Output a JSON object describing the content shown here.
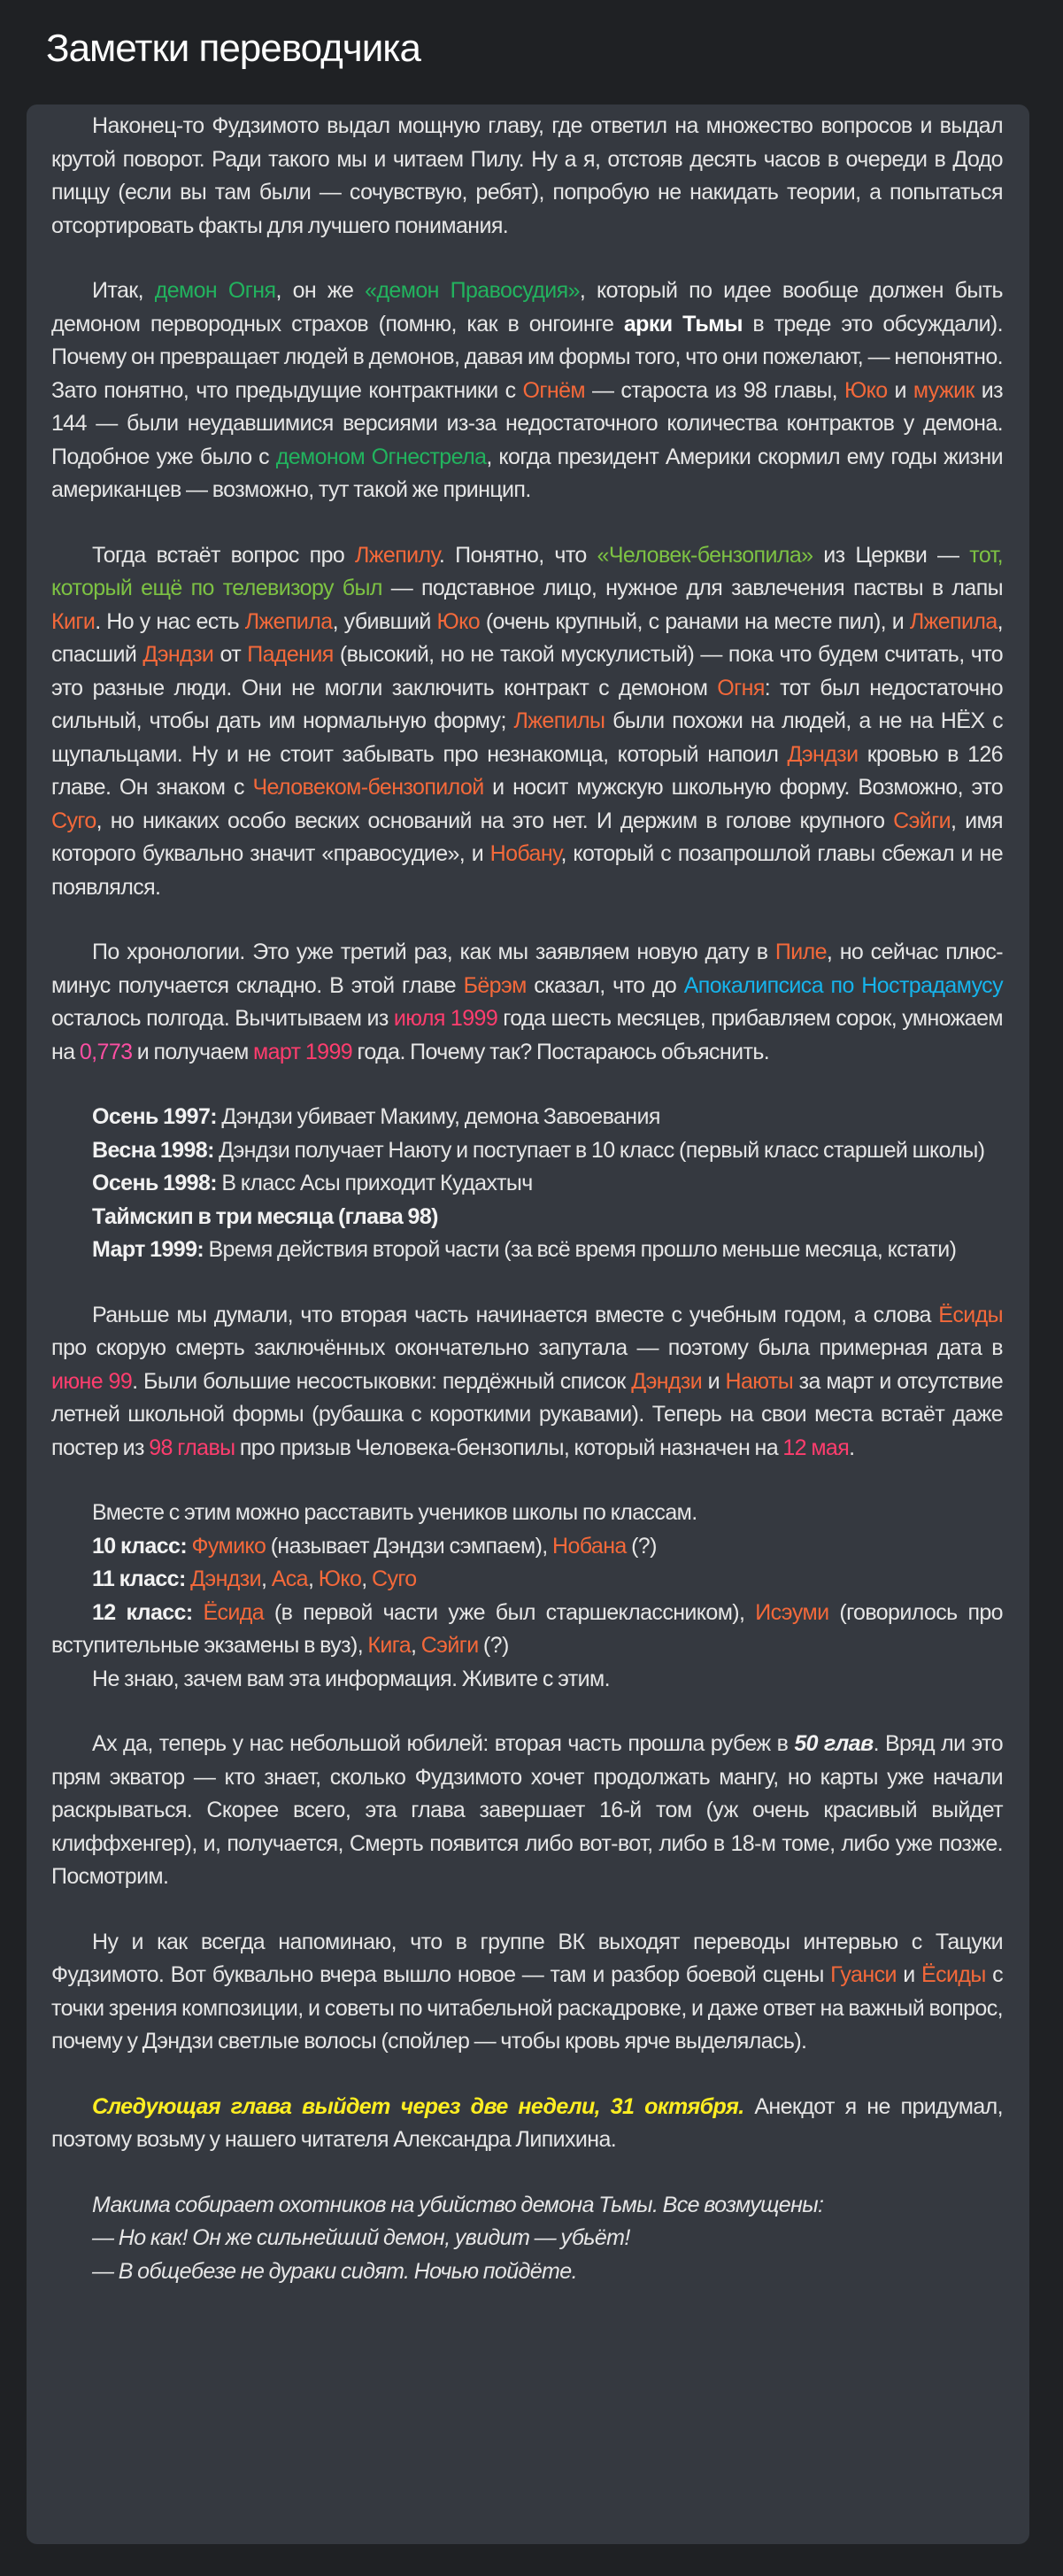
{
  "header": {
    "title": "Заметки переводчика"
  },
  "colors": {
    "g": "#22b35e",
    "lg": "#7dc243",
    "o": "#f4693a",
    "p": "#ff3d6e",
    "m": "#ff4fa3",
    "c": "#16b4ec",
    "y": "#ffee22",
    "text": "#e6e6e6",
    "card": "#353940",
    "background": "#1f2124"
  },
  "body": {
    "paragraphs": [
      {
        "kind": "ind",
        "segments": [
          {
            "t": "Наконец-то Фудзимото выдал мощную главу, где ответил на множество вопросов и выдал крутой поворот. Ради такого мы и читаем Пилу. Ну а я, отстояв десять часов в очереди в Додо пиццу (если вы там были — сочувствую, ребят), попробую не накидать теории, а попытаться отсортировать факты для лучшего понимания."
          }
        ]
      },
      {
        "kind": "ind",
        "segments": [
          {
            "t": "Итак, "
          },
          {
            "t": "демон Огня",
            "s": "g"
          },
          {
            "t": ", он же "
          },
          {
            "t": "«демон Правосудия»",
            "s": "g"
          },
          {
            "t": ", который по идее вообще должен быть демоном первородных страхов (помню, как в онгоинге "
          },
          {
            "t": "арки Тьмы",
            "s": "w"
          },
          {
            "t": " в треде это обсуждали). Почему он превращает людей в демонов, давая им формы того, что они пожелают, — непонятно. Зато понятно, что предыдущие контрактники с "
          },
          {
            "t": "Огнём",
            "s": "o"
          },
          {
            "t": " — староста из 98 главы, "
          },
          {
            "t": "Юко",
            "s": "o"
          },
          {
            "t": " и "
          },
          {
            "t": "мужик",
            "s": "o"
          },
          {
            "t": " из 144 — были неудавшимися версиями из-за недостаточного количества контрактов у демона. Подобное уже было с "
          },
          {
            "t": "демоном Огнестрела",
            "s": "g"
          },
          {
            "t": ", когда президент Америки скормил ему годы жизни американцев — возможно, тут такой же принцип."
          }
        ]
      },
      {
        "kind": "ind",
        "segments": [
          {
            "t": "Тогда встаёт вопрос про "
          },
          {
            "t": "Лжепилу",
            "s": "o"
          },
          {
            "t": ". Понятно, что "
          },
          {
            "t": "«Человек-бензопила»",
            "s": "lg"
          },
          {
            "t": " из Церкви — "
          },
          {
            "t": "тот, который ещё по телевизору был",
            "s": "lg"
          },
          {
            "t": " — подставное лицо, нужное для завлечения паствы в лапы "
          },
          {
            "t": "Киги",
            "s": "o"
          },
          {
            "t": ". Но у нас есть "
          },
          {
            "t": "Лжепила",
            "s": "o"
          },
          {
            "t": ", убивший "
          },
          {
            "t": "Юко",
            "s": "o"
          },
          {
            "t": " (очень крупный, с ранами на месте пил), и "
          },
          {
            "t": "Лжепила",
            "s": "o"
          },
          {
            "t": ", спасший "
          },
          {
            "t": "Дэндзи",
            "s": "o"
          },
          {
            "t": " от "
          },
          {
            "t": "Падения",
            "s": "o"
          },
          {
            "t": " (высокий, но не такой мускулистый) — пока что будем считать, что это разные люди. Они не могли заключить контракт с демоном "
          },
          {
            "t": "Огня",
            "s": "o"
          },
          {
            "t": ": тот был недостаточно сильный, чтобы дать им нормальную форму; "
          },
          {
            "t": "Лжепилы",
            "s": "o"
          },
          {
            "t": " были похожи на людей, а не на НЁХ с щупальцами. Ну и не стоит забывать про незнакомца, который напоил "
          },
          {
            "t": "Дэндзи",
            "s": "o"
          },
          {
            "t": " кровью в 126 главе. Он знаком с "
          },
          {
            "t": "Человеком-бензопилой",
            "s": "o"
          },
          {
            "t": " и носит мужскую школьную форму. Возможно, это "
          },
          {
            "t": "Суго",
            "s": "o"
          },
          {
            "t": ", но никаких особо веских оснований на это нет. И держим в голове крупного "
          },
          {
            "t": "Сэйги",
            "s": "o"
          },
          {
            "t": ", имя которого буквально значит «правосудие», и "
          },
          {
            "t": "Нобану",
            "s": "o"
          },
          {
            "t": ", который с позапрошлой главы сбежал и не появлялся."
          }
        ]
      },
      {
        "kind": "ind",
        "segments": [
          {
            "t": "По хронологии. Это уже третий раз, как мы заявляем новую дату в "
          },
          {
            "t": "Пиле",
            "s": "o"
          },
          {
            "t": ", но сейчас плюс-минус получается складно. В этой главе "
          },
          {
            "t": "Бёрэм",
            "s": "o"
          },
          {
            "t": " сказал, что до "
          },
          {
            "t": "Апокалипсиса по Нострадамусу",
            "s": "c"
          },
          {
            "t": " осталось полгода. Вычитываем из "
          },
          {
            "t": "июля 1999",
            "s": "p"
          },
          {
            "t": " года шесть месяцев, прибавляем сорок, умножаем на "
          },
          {
            "t": "0,773",
            "s": "m"
          },
          {
            "t": " и получаем "
          },
          {
            "t": "март 1999",
            "s": "p"
          },
          {
            "t": " года. Почему так? Постараюсь объяснить."
          }
        ]
      },
      {
        "kind": "ind tight",
        "segments": [
          {
            "t": "Осень 1997:",
            "s": "b"
          },
          {
            "t": " Дэндзи убивает Макиму, демона Завоевания"
          }
        ]
      },
      {
        "kind": "ind tight",
        "segments": [
          {
            "t": "Весна 1998:",
            "s": "b"
          },
          {
            "t": " Дэндзи получает Наюту и поступает в 10 класс (первый класс старшей школы)"
          }
        ]
      },
      {
        "kind": "ind tight",
        "segments": [
          {
            "t": "Осень 1998:",
            "s": "b"
          },
          {
            "t": " В класс Асы приходит Кудахтыч"
          }
        ]
      },
      {
        "kind": "ind tight",
        "segments": [
          {
            "t": "Таймскип в три месяца (глава 98)",
            "s": "b"
          }
        ]
      },
      {
        "kind": "ind gap",
        "segments": [
          {
            "t": "Март 1999:",
            "s": "b"
          },
          {
            "t": " Время действия второй части (за всё время прошло меньше месяца, кстати)"
          }
        ]
      },
      {
        "kind": "ind",
        "segments": [
          {
            "t": "Раньше мы думали, что вторая часть начинается вместе с учебным годом, а слова "
          },
          {
            "t": "Ёсиды",
            "s": "o"
          },
          {
            "t": " про скорую смерть заключённых окончательно запутала — поэтому была примерная дата в "
          },
          {
            "t": "июне 99",
            "s": "p"
          },
          {
            "t": ". Были большие несостыковки: пердёжный список "
          },
          {
            "t": "Дэндзи",
            "s": "o"
          },
          {
            "t": " и "
          },
          {
            "t": "Наюты",
            "s": "o"
          },
          {
            "t": " за март и отсутствие летней школьной формы (рубашка с короткими рукавами). Теперь на свои места встаёт даже постер из "
          },
          {
            "t": "98 главы",
            "s": "p"
          },
          {
            "t": " про призыв Человека-бензопилы, который назначен на "
          },
          {
            "t": "12 мая",
            "s": "p"
          },
          {
            "t": "."
          }
        ]
      },
      {
        "kind": "ind tight",
        "segments": [
          {
            "t": "Вместе с этим можно расставить учеников школы по классам."
          }
        ]
      },
      {
        "kind": "ind tight",
        "segments": [
          {
            "t": "10 класс:",
            "s": "b"
          },
          {
            "t": " "
          },
          {
            "t": "Фумико",
            "s": "o"
          },
          {
            "t": " (называет Дэндзи сэмпаем), "
          },
          {
            "t": "Нобана",
            "s": "o"
          },
          {
            "t": " (?)"
          }
        ]
      },
      {
        "kind": "ind tight",
        "segments": [
          {
            "t": "11 класс:",
            "s": "b"
          },
          {
            "t": " "
          },
          {
            "t": "Дэндзи",
            "s": "o"
          },
          {
            "t": ", "
          },
          {
            "t": "Аса",
            "s": "o"
          },
          {
            "t": ", "
          },
          {
            "t": "Юко",
            "s": "o"
          },
          {
            "t": ", "
          },
          {
            "t": "Суго",
            "s": "o"
          }
        ]
      },
      {
        "kind": "ind tight",
        "segments": [
          {
            "t": "12 класс:",
            "s": "b"
          },
          {
            "t": " "
          },
          {
            "t": "Ёсида",
            "s": "o"
          },
          {
            "t": " (в первой части уже был старшеклассником), "
          },
          {
            "t": "Исэуми",
            "s": "o"
          },
          {
            "t": " (говорилось про вступительные экзамены в вуз), "
          },
          {
            "t": "Кига",
            "s": "o"
          },
          {
            "t": ", "
          },
          {
            "t": "Сэйги",
            "s": "o"
          },
          {
            "t": " (?)"
          }
        ]
      },
      {
        "kind": "ind gap",
        "segments": [
          {
            "t": "Не знаю, зачем вам эта информация. Живите с этим."
          }
        ]
      },
      {
        "kind": "ind",
        "segments": [
          {
            "t": "Ах да, теперь у нас небольшой юбилей: вторая часть прошла рубеж в "
          },
          {
            "t": "50 глав",
            "s": "bi"
          },
          {
            "t": ". Вряд ли это прям экватор — кто знает, сколько Фудзимото хочет продолжать мангу, но карты уже начали раскрываться. Скорее всего, эта глава завершает 16-й том (уж очень красивый выйдет клиффхенгер), и, получается, Смерть появится либо вот-вот, либо в 18-м томе, либо уже позже. Посмотрим."
          }
        ]
      },
      {
        "kind": "ind",
        "segments": [
          {
            "t": "Ну и как всегда напоминаю, что в группе ВК выходят переводы интервью с Тацуки Фудзимото. Вот буквально вчера вышло новое — там и разбор боевой сцены "
          },
          {
            "t": "Гуанси",
            "s": "o"
          },
          {
            "t": " и "
          },
          {
            "t": "Ёсиды",
            "s": "o"
          },
          {
            "t": " с точки зрения композиции, и советы по читабельной раскадровке, и даже ответ на важный вопрос, почему у Дэндзи светлые волосы (спойлер — чтобы кровь ярче выделялась)."
          }
        ]
      },
      {
        "kind": "ind",
        "segments": [
          {
            "t": "Следующая глава выйдет через две недели, 31 октября.",
            "s": "y"
          },
          {
            "t": " Анекдот я не придумал, поэтому возьму у нашего читателя Александра Липихина."
          }
        ]
      },
      {
        "kind": "ind tight",
        "segments": [
          {
            "t": "Макима собирает охотников на убийство демона Тьмы. Все возмущены:",
            "s": "i"
          }
        ]
      },
      {
        "kind": "ind tight",
        "segments": [
          {
            "t": "— Но как! Он же сильнейший демон, увидит — убьёт!",
            "s": "i"
          }
        ]
      },
      {
        "kind": "ind tight",
        "segments": [
          {
            "t": "— В общебезе не дураки сидят. Ночью пойдёте.",
            "s": "i"
          }
        ]
      }
    ]
  }
}
